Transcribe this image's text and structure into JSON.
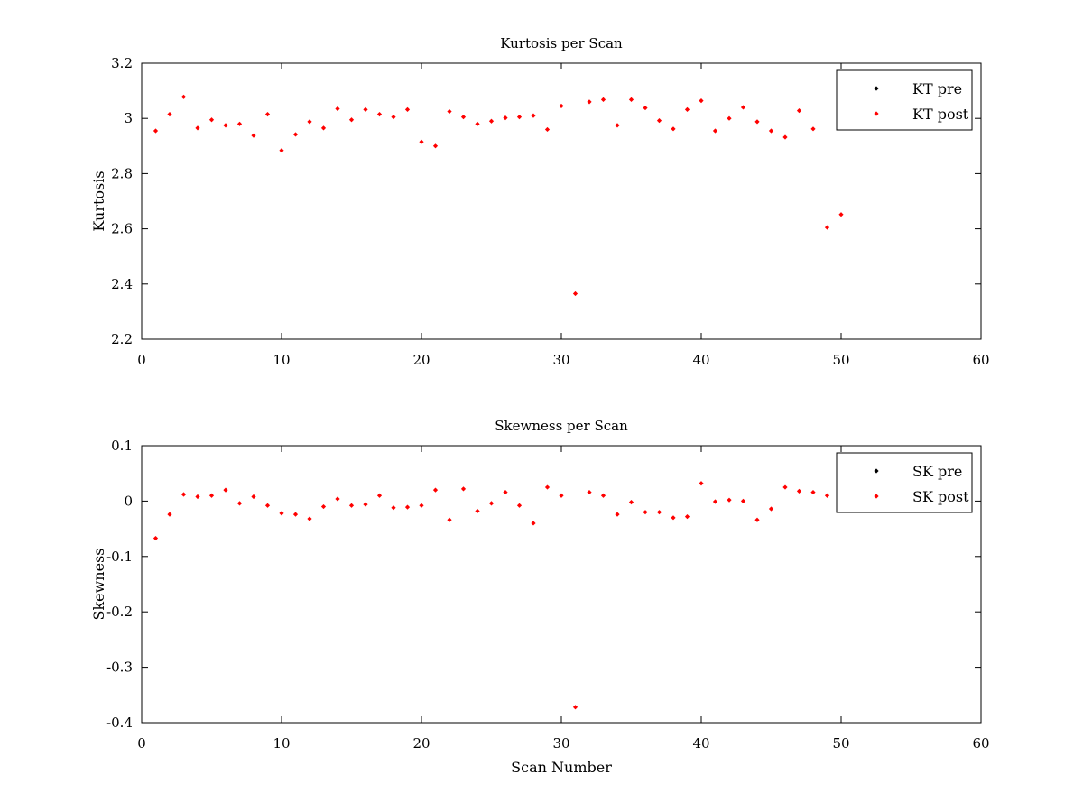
{
  "colors": {
    "pre": "#000000",
    "post": "#ff0000"
  },
  "chart_data": [
    {
      "type": "scatter",
      "title": "Kurtosis per Scan",
      "xlabel": "",
      "ylabel": "Kurtosis",
      "xlim": [
        0,
        60
      ],
      "ylim": [
        2.2,
        3.2
      ],
      "xticks": [
        0,
        10,
        20,
        30,
        40,
        50,
        60
      ],
      "xtick_labels": [
        "0",
        "10",
        "20",
        "30",
        "40",
        "50",
        "60"
      ],
      "yticks": [
        2.2,
        2.4,
        2.6,
        2.8,
        3.0,
        3.2
      ],
      "ytick_labels": [
        "2.2",
        "2.4",
        "2.6",
        "2.8",
        "3",
        "3.2"
      ],
      "legend_position": "top-right",
      "x": [
        1,
        2,
        3,
        4,
        5,
        6,
        7,
        8,
        9,
        10,
        11,
        12,
        13,
        14,
        15,
        16,
        17,
        18,
        19,
        20,
        21,
        22,
        23,
        24,
        25,
        26,
        27,
        28,
        29,
        30,
        31,
        32,
        33,
        34,
        35,
        36,
        37,
        38,
        39,
        40,
        41,
        42,
        43,
        44,
        45,
        46,
        47,
        48,
        49,
        50
      ],
      "series": [
        {
          "name": "KT pre",
          "color": "#000000",
          "values": []
        },
        {
          "name": "KT post",
          "color": "#ff0000",
          "values": [
            2.955,
            3.015,
            3.078,
            2.965,
            2.995,
            2.975,
            2.98,
            2.938,
            3.015,
            2.884,
            2.942,
            2.988,
            2.965,
            3.035,
            2.995,
            3.032,
            3.015,
            3.005,
            3.032,
            2.915,
            2.9,
            3.025,
            3.005,
            2.98,
            2.99,
            3.002,
            3.005,
            3.01,
            2.96,
            3.045,
            2.365,
            3.06,
            3.068,
            2.975,
            3.068,
            3.038,
            2.992,
            2.962,
            3.032,
            3.064,
            2.955,
            3.0,
            3.04,
            2.988,
            2.955,
            2.932,
            3.028,
            2.962,
            2.605,
            2.652
          ]
        }
      ]
    },
    {
      "type": "scatter",
      "title": "Skewness per Scan",
      "xlabel": "Scan Number",
      "ylabel": "Skewness",
      "xlim": [
        0,
        60
      ],
      "ylim": [
        -0.4,
        0.1
      ],
      "xticks": [
        0,
        10,
        20,
        30,
        40,
        50,
        60
      ],
      "xtick_labels": [
        "0",
        "10",
        "20",
        "30",
        "40",
        "50",
        "60"
      ],
      "yticks": [
        -0.4,
        -0.3,
        -0.2,
        -0.1,
        0,
        0.1
      ],
      "ytick_labels": [
        "-0.4",
        "-0.3",
        "-0.2",
        "-0.1",
        "0",
        "0.1"
      ],
      "legend_position": "top-right",
      "x": [
        1,
        2,
        3,
        4,
        5,
        6,
        7,
        8,
        9,
        10,
        11,
        12,
        13,
        14,
        15,
        16,
        17,
        18,
        19,
        20,
        21,
        22,
        23,
        24,
        25,
        26,
        27,
        28,
        29,
        30,
        31,
        32,
        33,
        34,
        35,
        36,
        37,
        38,
        39,
        40,
        41,
        42,
        43,
        44,
        45,
        46,
        47,
        48,
        49
      ],
      "series": [
        {
          "name": "SK pre",
          "color": "#000000",
          "values": []
        },
        {
          "name": "SK post",
          "color": "#ff0000",
          "values": [
            -0.067,
            -0.024,
            0.012,
            0.008,
            0.01,
            0.02,
            -0.004,
            0.008,
            -0.008,
            -0.022,
            -0.024,
            -0.032,
            -0.01,
            0.004,
            -0.008,
            -0.006,
            0.01,
            -0.012,
            -0.011,
            -0.008,
            0.02,
            -0.034,
            0.022,
            -0.018,
            -0.004,
            0.016,
            -0.008,
            -0.04,
            0.025,
            0.01,
            -0.372,
            0.016,
            0.01,
            -0.024,
            -0.002,
            -0.02,
            -0.02,
            -0.03,
            -0.028,
            0.032,
            -0.001,
            0.002,
            0.0,
            -0.034,
            -0.014,
            0.025,
            0.018,
            0.016,
            0.01
          ]
        }
      ]
    }
  ]
}
